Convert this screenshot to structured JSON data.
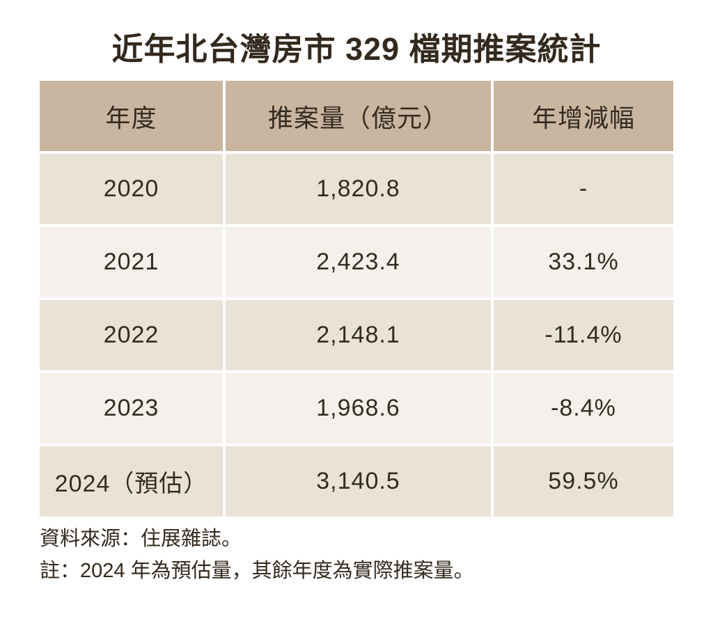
{
  "title": "近年北台灣房市 329 檔期推案統計",
  "table": {
    "headers": [
      "年度",
      "推案量（億元）",
      "年增減幅"
    ],
    "rows": [
      [
        "2020",
        "1,820.8",
        "-"
      ],
      [
        "2021",
        "2,423.4",
        "33.1%"
      ],
      [
        "2022",
        "2,148.1",
        "-11.4%"
      ],
      [
        "2023",
        "1,968.6",
        "-8.4%"
      ],
      [
        "2024（預估）",
        "3,140.5",
        "59.5%"
      ]
    ]
  },
  "notes": [
    "資料來源：住展雜誌。",
    "註：2024 年為預估量，其餘年度為實際推案量。"
  ],
  "colors": {
    "header_bg": "#c9b6a0",
    "row_odd_bg": "#e9e2d7",
    "row_even_bg": "#f4f1ec",
    "gap": "#ffffff",
    "text": "#33291e"
  },
  "chart_data": {
    "type": "table",
    "title": "近年北台灣房市 329 檔期推案統計",
    "columns": [
      "年度",
      "推案量（億元）",
      "年增減幅"
    ],
    "categories": [
      "2020",
      "2021",
      "2022",
      "2023",
      "2024（預估）"
    ],
    "series": [
      {
        "name": "推案量（億元）",
        "values": [
          1820.8,
          2423.4,
          2148.1,
          1968.6,
          3140.5
        ]
      },
      {
        "name": "年增減幅(%)",
        "values": [
          null,
          33.1,
          -11.4,
          -8.4,
          59.5
        ]
      }
    ],
    "source": "住展雜誌",
    "note": "2024 年為預估量，其餘年度為實際推案量"
  }
}
